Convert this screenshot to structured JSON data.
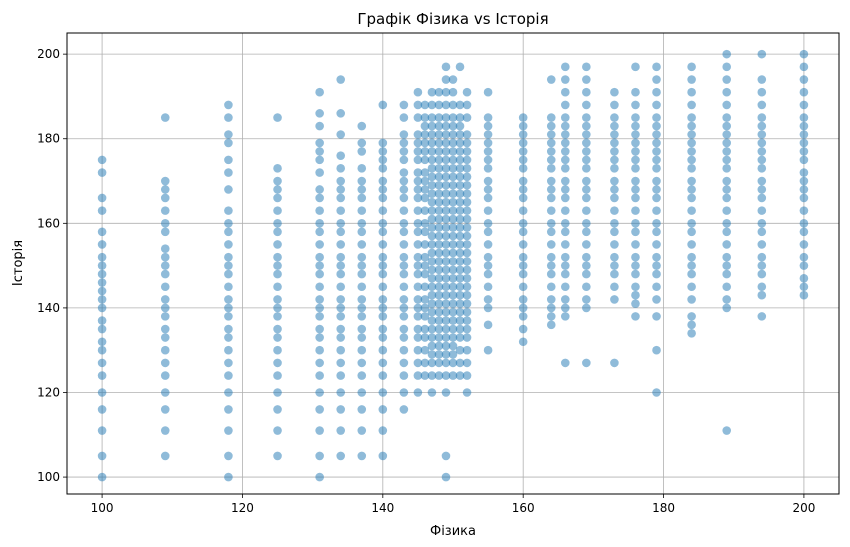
{
  "chart_data": {
    "type": "scatter",
    "title": "Графік Фізика vs Історія",
    "xlabel": "Фізика",
    "ylabel": "Історія",
    "xlim": [
      95,
      205
    ],
    "ylim": [
      96,
      205
    ],
    "xticks": [
      100,
      120,
      140,
      160,
      180,
      200
    ],
    "yticks": [
      100,
      120,
      140,
      160,
      180,
      200
    ],
    "grid": true,
    "color": "#1f77b4",
    "alpha": 0.5,
    "series": [
      {
        "x_values": [
          100,
          109,
          118,
          125,
          131,
          134,
          137,
          140,
          143,
          145,
          146,
          147,
          148,
          149,
          150,
          151,
          152,
          155,
          160,
          164,
          166,
          169,
          173,
          176,
          179,
          184,
          189,
          194,
          200
        ],
        "point_columns": [
          [
            100,
            105,
            111,
            116,
            120,
            124,
            127,
            130,
            132,
            135,
            137,
            140,
            142,
            144,
            146,
            148,
            150,
            152,
            155,
            158,
            163,
            166,
            172,
            175
          ],
          [
            105,
            111,
            116,
            120,
            124,
            127,
            130,
            133,
            135,
            138,
            140,
            142,
            145,
            148,
            150,
            152,
            154,
            158,
            160,
            163,
            166,
            168,
            170,
            185
          ],
          [
            100,
            105,
            111,
            116,
            120,
            124,
            127,
            130,
            133,
            135,
            138,
            140,
            142,
            145,
            148,
            150,
            152,
            155,
            158,
            160,
            163,
            168,
            172,
            175,
            179,
            181,
            185,
            188
          ],
          [
            105,
            111,
            116,
            120,
            124,
            127,
            130,
            133,
            135,
            138,
            140,
            142,
            145,
            148,
            150,
            152,
            155,
            158,
            160,
            163,
            166,
            168,
            170,
            173,
            185
          ],
          [
            100,
            105,
            111,
            116,
            120,
            124,
            127,
            130,
            133,
            135,
            138,
            140,
            142,
            145,
            148,
            150,
            152,
            155,
            158,
            160,
            163,
            166,
            168,
            172,
            175,
            177,
            179,
            183,
            186,
            191
          ],
          [
            105,
            111,
            116,
            120,
            124,
            127,
            130,
            133,
            135,
            138,
            140,
            142,
            145,
            148,
            150,
            152,
            155,
            158,
            160,
            163,
            166,
            168,
            170,
            173,
            176,
            181,
            186,
            194
          ],
          [
            105,
            111,
            116,
            120,
            124,
            127,
            130,
            133,
            135,
            138,
            140,
            142,
            145,
            148,
            150,
            152,
            155,
            158,
            160,
            163,
            166,
            168,
            170,
            173,
            177,
            179,
            183
          ],
          [
            105,
            111,
            116,
            120,
            124,
            127,
            130,
            133,
            135,
            138,
            140,
            142,
            145,
            148,
            150,
            152,
            155,
            158,
            160,
            163,
            166,
            168,
            170,
            173,
            175,
            177,
            179,
            188
          ],
          [
            116,
            120,
            124,
            127,
            130,
            133,
            135,
            138,
            140,
            142,
            145,
            148,
            150,
            152,
            155,
            158,
            160,
            163,
            166,
            168,
            170,
            172,
            175,
            177,
            179,
            181,
            185,
            188
          ],
          [
            120,
            124,
            127,
            130,
            133,
            135,
            138,
            140,
            142,
            145,
            148,
            150,
            152,
            155,
            158,
            160,
            163,
            166,
            168,
            170,
            172,
            175,
            177,
            179,
            181,
            185,
            188,
            191
          ],
          [
            124,
            127,
            130,
            133,
            135,
            138,
            140,
            142,
            145,
            148,
            150,
            152,
            155,
            158,
            160,
            163,
            166,
            168,
            170,
            172,
            175,
            177,
            179,
            181,
            183,
            185,
            188
          ],
          [
            120,
            124,
            127,
            129,
            131,
            133,
            135,
            137,
            139,
            141,
            143,
            145,
            147,
            149,
            151,
            153,
            155,
            157,
            159,
            161,
            163,
            165,
            167,
            169,
            171,
            173,
            175,
            177,
            179,
            181,
            183,
            185,
            188,
            191
          ],
          [
            124,
            127,
            129,
            131,
            133,
            135,
            137,
            139,
            141,
            143,
            145,
            147,
            149,
            151,
            153,
            155,
            157,
            159,
            161,
            163,
            165,
            167,
            169,
            171,
            173,
            175,
            177,
            179,
            181,
            183,
            185,
            188,
            191
          ],
          [
            100,
            105,
            120,
            124,
            127,
            129,
            131,
            133,
            135,
            137,
            139,
            141,
            143,
            145,
            147,
            149,
            151,
            153,
            155,
            157,
            159,
            161,
            163,
            165,
            167,
            169,
            171,
            173,
            175,
            177,
            179,
            181,
            183,
            185,
            188,
            191,
            194,
            197
          ],
          [
            124,
            127,
            129,
            131,
            133,
            135,
            137,
            139,
            141,
            143,
            145,
            147,
            149,
            151,
            153,
            155,
            157,
            159,
            161,
            163,
            165,
            167,
            169,
            171,
            173,
            175,
            177,
            179,
            181,
            183,
            185,
            188,
            191,
            194
          ],
          [
            124,
            127,
            130,
            133,
            135,
            137,
            139,
            141,
            143,
            145,
            147,
            149,
            151,
            153,
            155,
            157,
            159,
            161,
            163,
            165,
            167,
            169,
            171,
            173,
            175,
            177,
            179,
            181,
            183,
            185,
            188,
            197
          ],
          [
            120,
            124,
            127,
            130,
            133,
            135,
            137,
            139,
            141,
            143,
            145,
            147,
            149,
            151,
            153,
            155,
            157,
            159,
            161,
            163,
            165,
            167,
            169,
            171,
            173,
            175,
            177,
            179,
            181,
            185,
            188,
            191
          ],
          [
            130,
            136,
            140,
            142,
            145,
            148,
            150,
            152,
            155,
            158,
            160,
            163,
            166,
            168,
            170,
            173,
            175,
            177,
            179,
            181,
            183,
            185,
            191
          ],
          [
            132,
            135,
            138,
            140,
            142,
            145,
            148,
            150,
            152,
            155,
            158,
            160,
            163,
            166,
            168,
            170,
            173,
            175,
            177,
            179,
            181,
            183,
            185
          ],
          [
            136,
            138,
            140,
            142,
            145,
            148,
            150,
            152,
            155,
            158,
            160,
            163,
            166,
            168,
            170,
            173,
            175,
            177,
            179,
            181,
            183,
            185,
            194
          ],
          [
            127,
            138,
            140,
            142,
            145,
            148,
            150,
            152,
            155,
            158,
            160,
            163,
            166,
            168,
            170,
            173,
            175,
            177,
            179,
            181,
            183,
            185,
            188,
            191,
            194,
            197
          ],
          [
            127,
            140,
            142,
            145,
            148,
            150,
            152,
            155,
            158,
            160,
            163,
            166,
            168,
            170,
            173,
            175,
            177,
            179,
            181,
            183,
            185,
            188,
            191,
            194,
            197
          ],
          [
            127,
            142,
            145,
            148,
            150,
            152,
            155,
            158,
            160,
            163,
            166,
            168,
            170,
            173,
            175,
            177,
            179,
            181,
            183,
            185,
            188,
            191
          ],
          [
            138,
            141,
            143,
            145,
            148,
            150,
            152,
            155,
            158,
            160,
            163,
            166,
            168,
            170,
            173,
            175,
            177,
            179,
            181,
            183,
            185,
            188,
            191,
            197
          ],
          [
            120,
            130,
            138,
            142,
            145,
            148,
            150,
            152,
            155,
            158,
            160,
            163,
            166,
            168,
            170,
            173,
            175,
            177,
            179,
            181,
            183,
            185,
            188,
            191,
            194,
            197
          ],
          [
            134,
            136,
            138,
            142,
            145,
            148,
            150,
            152,
            155,
            158,
            160,
            163,
            166,
            168,
            170,
            173,
            175,
            177,
            179,
            181,
            183,
            185,
            188,
            191,
            194,
            197
          ],
          [
            111,
            140,
            142,
            145,
            148,
            150,
            152,
            155,
            158,
            160,
            163,
            166,
            168,
            170,
            173,
            175,
            177,
            179,
            181,
            183,
            185,
            188,
            191,
            194,
            197,
            200
          ],
          [
            138,
            143,
            145,
            148,
            150,
            152,
            155,
            158,
            160,
            163,
            166,
            168,
            170,
            173,
            175,
            177,
            179,
            181,
            183,
            185,
            188,
            191,
            194,
            200
          ],
          [
            143,
            145,
            147,
            150,
            152,
            155,
            158,
            160,
            163,
            166,
            168,
            170,
            172,
            175,
            177,
            179,
            181,
            183,
            185,
            188,
            191,
            194,
            197,
            200
          ]
        ]
      }
    ]
  }
}
